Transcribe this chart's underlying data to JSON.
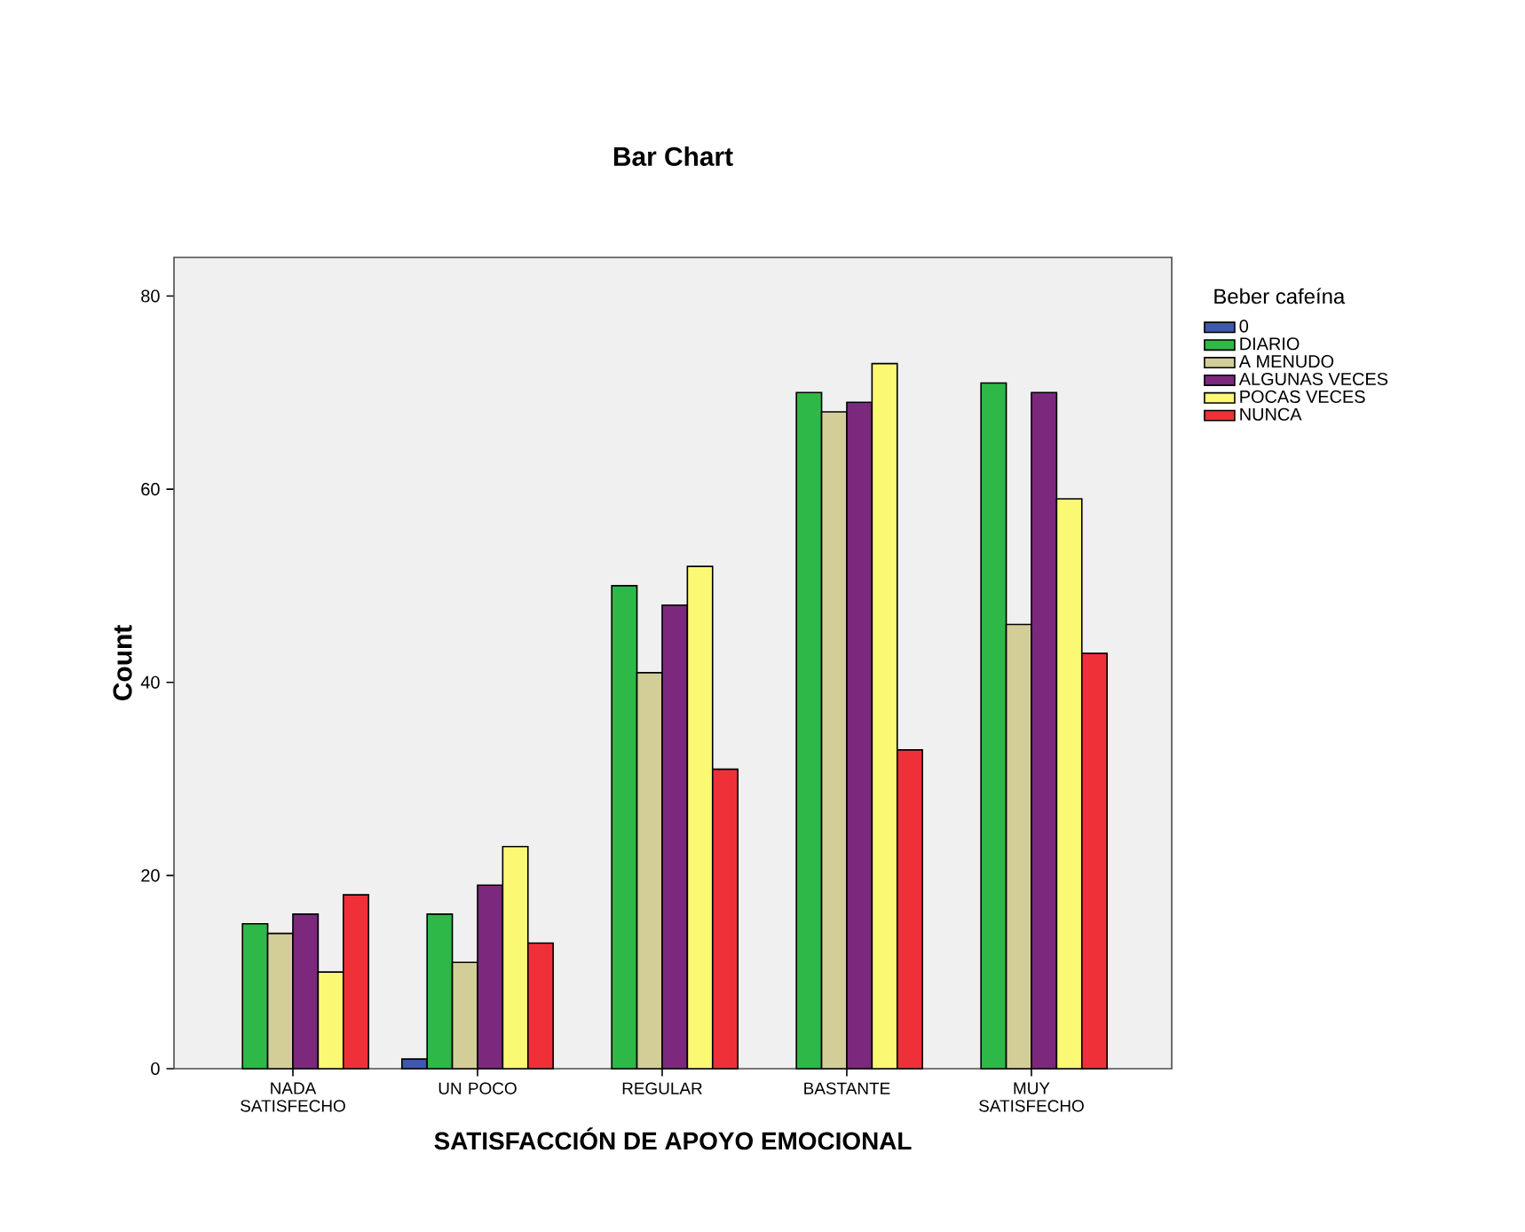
{
  "chart_data": {
    "type": "bar",
    "title": "Bar Chart",
    "xlabel": "SATISFACCIÓN DE APOYO EMOCIONAL",
    "ylabel": "Count",
    "legend_title": "Beber cafeína",
    "categories": [
      "NADA SATISFECHO",
      "UN POCO",
      "REGULAR",
      "BASTANTE",
      "MUY SATISFECHO"
    ],
    "series": [
      {
        "name": "0",
        "color": "#3e58ac",
        "values": [
          null,
          1,
          null,
          null,
          null
        ]
      },
      {
        "name": "DIARIO",
        "color": "#2eb848",
        "values": [
          15,
          16,
          50,
          70,
          71
        ]
      },
      {
        "name": "A MENUDO",
        "color": "#d3ce97",
        "values": [
          14,
          11,
          41,
          68,
          46
        ]
      },
      {
        "name": "ALGUNAS VECES",
        "color": "#7b287d",
        "values": [
          16,
          19,
          48,
          69,
          70
        ]
      },
      {
        "name": "POCAS VECES",
        "color": "#fbf873",
        "values": [
          10,
          23,
          52,
          73,
          59
        ]
      },
      {
        "name": "NUNCA",
        "color": "#ef3038",
        "values": [
          18,
          13,
          31,
          33,
          43
        ]
      }
    ],
    "ylim": [
      0,
      84
    ],
    "yticks": [
      0,
      20,
      40,
      60,
      80
    ],
    "grid": false,
    "legend": "right"
  }
}
